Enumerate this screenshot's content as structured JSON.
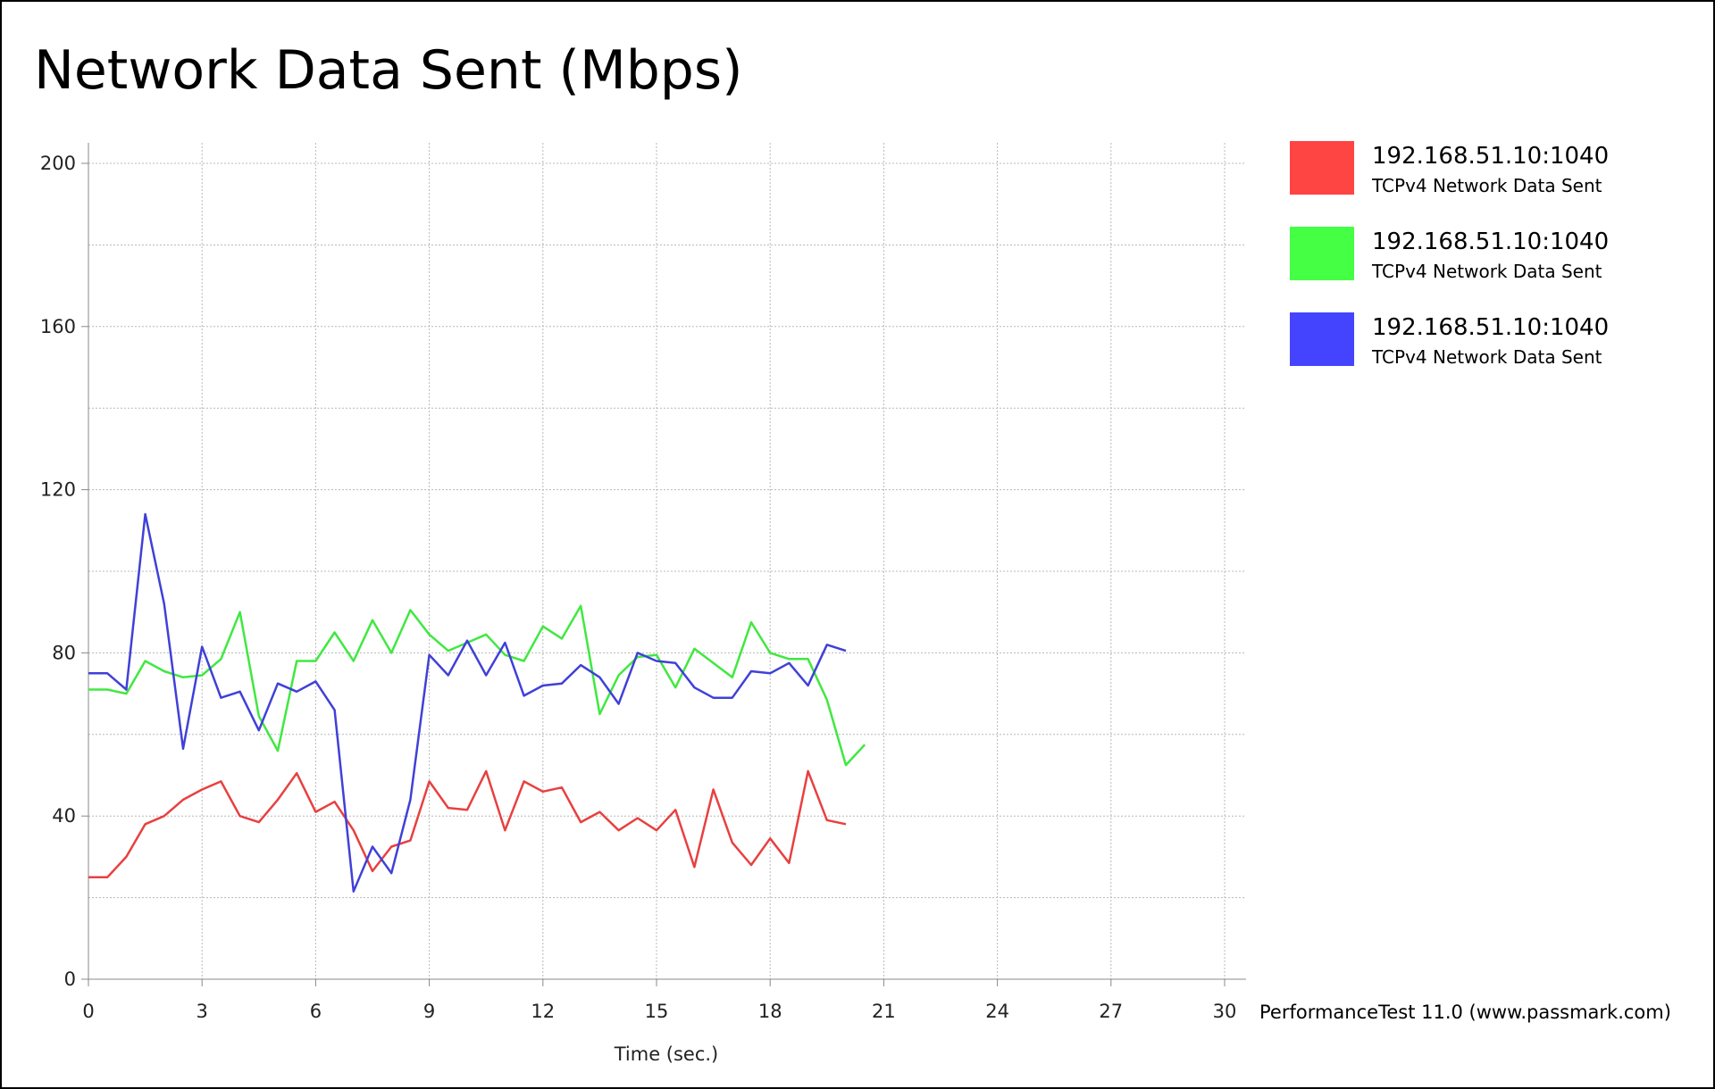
{
  "chart_data": {
    "type": "line",
    "title": "Network Data Sent (Mbps)",
    "xlabel": "Time (sec.)",
    "ylabel": "",
    "xlim": [
      0,
      30
    ],
    "ylim": [
      0,
      200
    ],
    "x_ticks": [
      "0",
      "3",
      "6",
      "9",
      "12",
      "15",
      "18",
      "21",
      "24",
      "27",
      "30"
    ],
    "y_ticks": [
      "0",
      "40",
      "80",
      "120",
      "160",
      "200"
    ],
    "grid": true,
    "legend_position": "right",
    "footer": "PerformanceTest 11.0 (www.passmark.com)",
    "series": [
      {
        "name": "192.168.51.10:1040",
        "description": "TCPv4 Network Data Sent",
        "color": "#e84040",
        "legend_color": "#ff4444",
        "points": [
          [
            0,
            25
          ],
          [
            0.5,
            25
          ],
          [
            1.0,
            30
          ],
          [
            1.5,
            38
          ],
          [
            2.0,
            40
          ],
          [
            2.5,
            44
          ],
          [
            3.0,
            46.5
          ],
          [
            3.5,
            48.5
          ],
          [
            4.0,
            40
          ],
          [
            4.5,
            38.5
          ],
          [
            5.0,
            44
          ],
          [
            5.5,
            50.5
          ],
          [
            6.0,
            41
          ],
          [
            6.5,
            43.5
          ],
          [
            7.0,
            36.5
          ],
          [
            7.5,
            26.5
          ],
          [
            8.0,
            32.5
          ],
          [
            8.5,
            34
          ],
          [
            9.0,
            48.5
          ],
          [
            9.5,
            42
          ],
          [
            10.0,
            41.5
          ],
          [
            10.5,
            51
          ],
          [
            11.0,
            36.5
          ],
          [
            11.5,
            48.5
          ],
          [
            12.0,
            46
          ],
          [
            12.5,
            47
          ],
          [
            13.0,
            38.5
          ],
          [
            13.5,
            41
          ],
          [
            14.0,
            36.5
          ],
          [
            14.5,
            39.5
          ],
          [
            15.0,
            36.5
          ],
          [
            15.5,
            41.5
          ],
          [
            16.0,
            27.5
          ],
          [
            16.5,
            46.5
          ],
          [
            17.0,
            33.5
          ],
          [
            17.5,
            28
          ],
          [
            18.0,
            34.5
          ],
          [
            18.5,
            28.5
          ],
          [
            19.0,
            51
          ],
          [
            19.5,
            39
          ],
          [
            20.0,
            38
          ]
        ]
      },
      {
        "name": "192.168.51.10:1040",
        "description": "TCPv4 Network Data Sent",
        "color": "#40e840",
        "legend_color": "#44ff44",
        "points": [
          [
            0,
            71
          ],
          [
            0.5,
            71
          ],
          [
            1.0,
            70
          ],
          [
            1.5,
            78
          ],
          [
            2.0,
            75.5
          ],
          [
            2.5,
            74
          ],
          [
            3.0,
            74.5
          ],
          [
            3.5,
            78.5
          ],
          [
            4.0,
            90
          ],
          [
            4.5,
            64.5
          ],
          [
            5.0,
            56
          ],
          [
            5.5,
            78
          ],
          [
            6.0,
            78
          ],
          [
            6.5,
            85
          ],
          [
            7.0,
            78
          ],
          [
            7.5,
            88
          ],
          [
            8.0,
            80
          ],
          [
            8.5,
            90.5
          ],
          [
            9.0,
            84.5
          ],
          [
            9.5,
            80.5
          ],
          [
            10.0,
            82.5
          ],
          [
            10.5,
            84.5
          ],
          [
            11.0,
            79.5
          ],
          [
            11.5,
            78
          ],
          [
            12.0,
            86.5
          ],
          [
            12.5,
            83.5
          ],
          [
            13.0,
            91.5
          ],
          [
            13.5,
            65
          ],
          [
            14.0,
            74.5
          ],
          [
            14.5,
            79
          ],
          [
            15.0,
            79.5
          ],
          [
            15.5,
            71.5
          ],
          [
            16.0,
            81
          ],
          [
            16.5,
            77.5
          ],
          [
            17.0,
            74
          ],
          [
            17.5,
            87.5
          ],
          [
            18.0,
            80
          ],
          [
            18.5,
            78.5
          ],
          [
            19.0,
            78.5
          ],
          [
            19.5,
            68.5
          ],
          [
            20.0,
            52.5
          ],
          [
            20.5,
            57.5
          ]
        ]
      },
      {
        "name": "192.168.51.10:1040",
        "description": "TCPv4 Network Data Sent",
        "color": "#4040d8",
        "legend_color": "#4444ff",
        "points": [
          [
            0,
            75
          ],
          [
            0.5,
            75
          ],
          [
            1.0,
            71
          ],
          [
            1.5,
            114
          ],
          [
            2.0,
            92
          ],
          [
            2.5,
            56.5
          ],
          [
            3.0,
            81.5
          ],
          [
            3.5,
            69
          ],
          [
            4.0,
            70.5
          ],
          [
            4.5,
            61
          ],
          [
            5.0,
            72.5
          ],
          [
            5.5,
            70.5
          ],
          [
            6.0,
            73
          ],
          [
            6.5,
            66
          ],
          [
            7.0,
            21.5
          ],
          [
            7.5,
            32.5
          ],
          [
            8.0,
            26
          ],
          [
            8.5,
            44
          ],
          [
            9.0,
            79.5
          ],
          [
            9.5,
            74.5
          ],
          [
            10.0,
            83
          ],
          [
            10.5,
            74.5
          ],
          [
            11.0,
            82.5
          ],
          [
            11.5,
            69.5
          ],
          [
            12.0,
            72
          ],
          [
            12.5,
            72.5
          ],
          [
            13.0,
            77
          ],
          [
            13.5,
            74
          ],
          [
            14.0,
            67.5
          ],
          [
            14.5,
            80
          ],
          [
            15.0,
            78
          ],
          [
            15.5,
            77.5
          ],
          [
            16.0,
            71.5
          ],
          [
            16.5,
            69
          ],
          [
            17.0,
            69
          ],
          [
            17.5,
            75.5
          ],
          [
            18.0,
            75
          ],
          [
            18.5,
            77.5
          ],
          [
            19.0,
            72
          ],
          [
            19.5,
            82
          ],
          [
            20.0,
            80.5
          ]
        ]
      }
    ]
  }
}
